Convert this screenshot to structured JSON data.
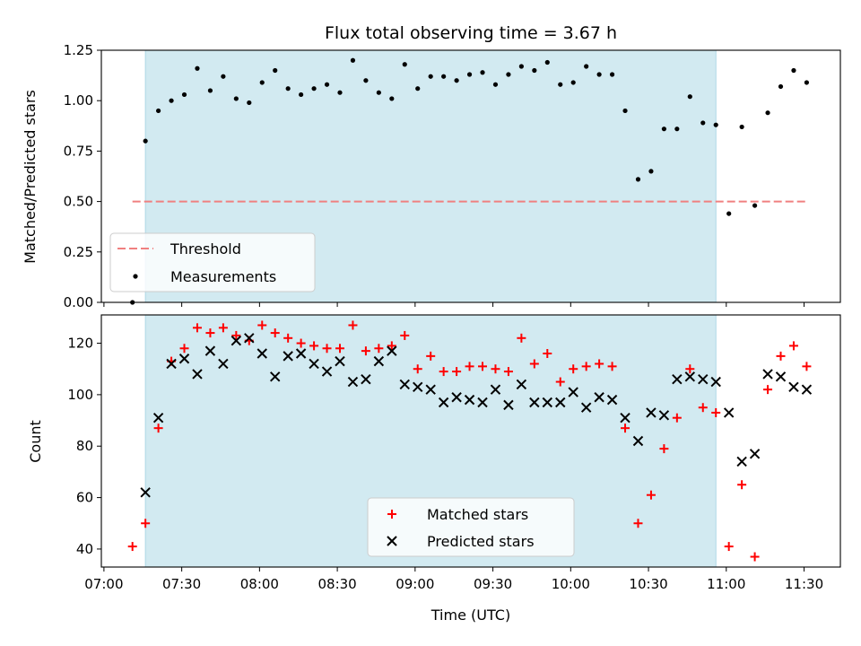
{
  "chart_data": {
    "title": "Flux total observing time = 3.67 h",
    "xlabel": "Time (UTC)",
    "x_tick_labels": [
      "07:00",
      "07:30",
      "08:00",
      "08:30",
      "09:00",
      "09:30",
      "10:00",
      "10:30",
      "11:00",
      "11:30"
    ],
    "x_range": [
      "06:59",
      "11:44"
    ],
    "shaded_interval": [
      "07:16",
      "10:56"
    ],
    "colors": {
      "shade": "#add8e6",
      "threshold": "#f08080",
      "measurements": "#000000",
      "matched": "#ff0000",
      "predicted": "#000000"
    },
    "top": {
      "type": "scatter",
      "ylabel": "Matched/Predicted stars",
      "ylim": [
        0.0,
        1.25
      ],
      "yticks": [
        "0.00",
        "0.25",
        "0.50",
        "0.75",
        "1.00",
        "1.25"
      ],
      "threshold": {
        "name": "Threshold",
        "value": 0.5,
        "x_start": "07:11",
        "x_end": "11:31"
      },
      "series_name": "Measurements",
      "legend_position": "lower-left",
      "points": [
        [
          "07:11",
          0.0
        ],
        [
          "07:16",
          0.8
        ],
        [
          "07:21",
          0.95
        ],
        [
          "07:26",
          1.0
        ],
        [
          "07:31",
          1.03
        ],
        [
          "07:36",
          1.16
        ],
        [
          "07:41",
          1.05
        ],
        [
          "07:46",
          1.12
        ],
        [
          "07:51",
          1.01
        ],
        [
          "07:56",
          0.99
        ],
        [
          "08:01",
          1.09
        ],
        [
          "08:06",
          1.15
        ],
        [
          "08:11",
          1.06
        ],
        [
          "08:16",
          1.03
        ],
        [
          "08:21",
          1.06
        ],
        [
          "08:26",
          1.08
        ],
        [
          "08:31",
          1.04
        ],
        [
          "08:36",
          1.2
        ],
        [
          "08:41",
          1.1
        ],
        [
          "08:46",
          1.04
        ],
        [
          "08:51",
          1.01
        ],
        [
          "08:56",
          1.18
        ],
        [
          "09:01",
          1.06
        ],
        [
          "09:06",
          1.12
        ],
        [
          "09:11",
          1.12
        ],
        [
          "09:16",
          1.1
        ],
        [
          "09:21",
          1.13
        ],
        [
          "09:26",
          1.14
        ],
        [
          "09:31",
          1.08
        ],
        [
          "09:36",
          1.13
        ],
        [
          "09:41",
          1.17
        ],
        [
          "09:46",
          1.15
        ],
        [
          "09:51",
          1.19
        ],
        [
          "09:56",
          1.08
        ],
        [
          "10:01",
          1.09
        ],
        [
          "10:06",
          1.17
        ],
        [
          "10:11",
          1.13
        ],
        [
          "10:16",
          1.13
        ],
        [
          "10:21",
          0.95
        ],
        [
          "10:26",
          0.61
        ],
        [
          "10:31",
          0.65
        ],
        [
          "10:36",
          0.86
        ],
        [
          "10:41",
          0.86
        ],
        [
          "10:46",
          1.02
        ],
        [
          "10:51",
          0.89
        ],
        [
          "10:56",
          0.88
        ],
        [
          "11:01",
          0.44
        ],
        [
          "11:06",
          0.87
        ],
        [
          "11:11",
          0.48
        ],
        [
          "11:16",
          0.94
        ],
        [
          "11:21",
          1.07
        ],
        [
          "11:26",
          1.15
        ],
        [
          "11:31",
          1.09
        ]
      ]
    },
    "bottom": {
      "type": "scatter",
      "ylabel": "Count",
      "ylim": [
        33,
        131
      ],
      "yticks": [
        "40",
        "60",
        "80",
        "100",
        "120"
      ],
      "legend_position": "lower-center",
      "series": [
        {
          "name": "Matched stars",
          "marker": "plus",
          "points": [
            [
              "07:11",
              41
            ],
            [
              "07:16",
              50
            ],
            [
              "07:21",
              87
            ],
            [
              "07:26",
              113
            ],
            [
              "07:31",
              118
            ],
            [
              "07:36",
              126
            ],
            [
              "07:41",
              124
            ],
            [
              "07:46",
              126
            ],
            [
              "07:51",
              123
            ],
            [
              "07:56",
              121
            ],
            [
              "08:01",
              127
            ],
            [
              "08:06",
              124
            ],
            [
              "08:11",
              122
            ],
            [
              "08:16",
              120
            ],
            [
              "08:21",
              119
            ],
            [
              "08:26",
              118
            ],
            [
              "08:31",
              118
            ],
            [
              "08:36",
              127
            ],
            [
              "08:41",
              117
            ],
            [
              "08:46",
              118
            ],
            [
              "08:51",
              119
            ],
            [
              "08:56",
              123
            ],
            [
              "09:01",
              110
            ],
            [
              "09:06",
              115
            ],
            [
              "09:11",
              109
            ],
            [
              "09:16",
              109
            ],
            [
              "09:21",
              111
            ],
            [
              "09:26",
              111
            ],
            [
              "09:31",
              110
            ],
            [
              "09:36",
              109
            ],
            [
              "09:41",
              122
            ],
            [
              "09:46",
              112
            ],
            [
              "09:51",
              116
            ],
            [
              "09:56",
              105
            ],
            [
              "10:01",
              110
            ],
            [
              "10:06",
              111
            ],
            [
              "10:11",
              112
            ],
            [
              "10:16",
              111
            ],
            [
              "10:21",
              87
            ],
            [
              "10:26",
              50
            ],
            [
              "10:31",
              61
            ],
            [
              "10:36",
              79
            ],
            [
              "10:41",
              91
            ],
            [
              "10:46",
              110
            ],
            [
              "10:51",
              95
            ],
            [
              "10:56",
              93
            ],
            [
              "11:01",
              41
            ],
            [
              "11:06",
              65
            ],
            [
              "11:11",
              37
            ],
            [
              "11:16",
              102
            ],
            [
              "11:21",
              115
            ],
            [
              "11:26",
              119
            ],
            [
              "11:31",
              111
            ]
          ]
        },
        {
          "name": "Predicted stars",
          "marker": "x",
          "points": [
            [
              "07:16",
              62
            ],
            [
              "07:21",
              91
            ],
            [
              "07:26",
              112
            ],
            [
              "07:31",
              114
            ],
            [
              "07:36",
              108
            ],
            [
              "07:41",
              117
            ],
            [
              "07:46",
              112
            ],
            [
              "07:51",
              121
            ],
            [
              "07:56",
              122
            ],
            [
              "08:01",
              116
            ],
            [
              "08:06",
              107
            ],
            [
              "08:11",
              115
            ],
            [
              "08:16",
              116
            ],
            [
              "08:21",
              112
            ],
            [
              "08:26",
              109
            ],
            [
              "08:31",
              113
            ],
            [
              "08:36",
              105
            ],
            [
              "08:41",
              106
            ],
            [
              "08:46",
              113
            ],
            [
              "08:51",
              117
            ],
            [
              "08:56",
              104
            ],
            [
              "09:01",
              103
            ],
            [
              "09:06",
              102
            ],
            [
              "09:11",
              97
            ],
            [
              "09:16",
              99
            ],
            [
              "09:21",
              98
            ],
            [
              "09:26",
              97
            ],
            [
              "09:31",
              102
            ],
            [
              "09:36",
              96
            ],
            [
              "09:41",
              104
            ],
            [
              "09:46",
              97
            ],
            [
              "09:51",
              97
            ],
            [
              "09:56",
              97
            ],
            [
              "10:01",
              101
            ],
            [
              "10:06",
              95
            ],
            [
              "10:11",
              99
            ],
            [
              "10:16",
              98
            ],
            [
              "10:21",
              91
            ],
            [
              "10:26",
              82
            ],
            [
              "10:31",
              93
            ],
            [
              "10:36",
              92
            ],
            [
              "10:41",
              106
            ],
            [
              "10:46",
              107
            ],
            [
              "10:51",
              106
            ],
            [
              "10:56",
              105
            ],
            [
              "11:01",
              93
            ],
            [
              "11:06",
              74
            ],
            [
              "11:11",
              77
            ],
            [
              "11:16",
              108
            ],
            [
              "11:21",
              107
            ],
            [
              "11:26",
              103
            ],
            [
              "11:31",
              102
            ]
          ]
        }
      ]
    }
  }
}
